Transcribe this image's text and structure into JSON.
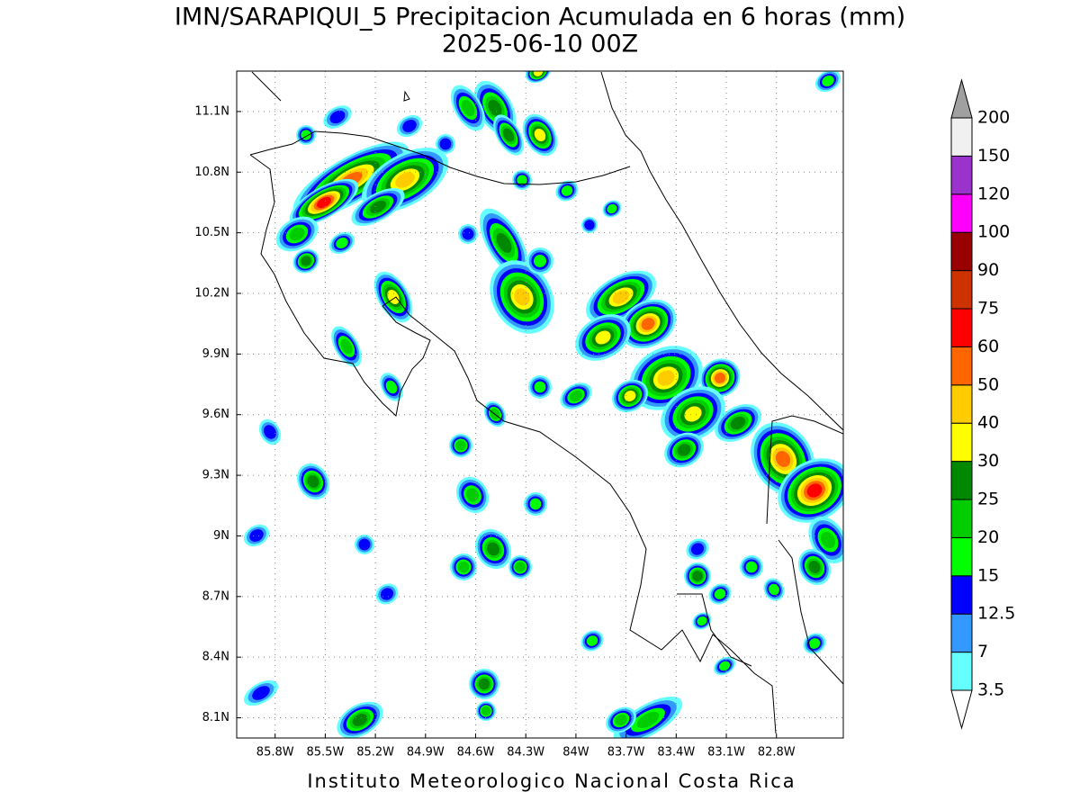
{
  "map": {
    "title": "IMN/SARAPIQUI_5 Precipitacion Acumulada en 6 horas (mm)",
    "subtitle": "2025-06-10 00Z",
    "footer": "Instituto Meteorologico Nacional Costa Rica",
    "xlim": [
      -86.03,
      -82.4
    ],
    "ylim": [
      8.0,
      11.3
    ],
    "xticks": [
      {
        "value": -85.8,
        "label": "85.8W"
      },
      {
        "value": -85.5,
        "label": "85.5W"
      },
      {
        "value": -85.2,
        "label": "85.2W"
      },
      {
        "value": -84.9,
        "label": "84.9W"
      },
      {
        "value": -84.6,
        "label": "84.6W"
      },
      {
        "value": -84.3,
        "label": "84.3W"
      },
      {
        "value": -84.0,
        "label": "84W"
      },
      {
        "value": -83.7,
        "label": "83.7W"
      },
      {
        "value": -83.4,
        "label": "83.4W"
      },
      {
        "value": -83.1,
        "label": "83.1W"
      },
      {
        "value": -82.8,
        "label": "82.8W"
      }
    ],
    "yticks": [
      {
        "value": 8.1,
        "label": "8.1N"
      },
      {
        "value": 8.4,
        "label": "8.4N"
      },
      {
        "value": 8.7,
        "label": "8.7N"
      },
      {
        "value": 9.0,
        "label": "9N"
      },
      {
        "value": 9.3,
        "label": "9.3N"
      },
      {
        "value": 9.6,
        "label": "9.6N"
      },
      {
        "value": 9.9,
        "label": "9.9N"
      },
      {
        "value": 10.2,
        "label": "10.2N"
      },
      {
        "value": 10.5,
        "label": "10.5N"
      },
      {
        "value": 10.8,
        "label": "10.8N"
      },
      {
        "value": 11.1,
        "label": "11.1N"
      }
    ],
    "grid": true,
    "colorbar": {
      "levels": [
        3.5,
        7,
        12.5,
        15,
        20,
        25,
        30,
        40,
        50,
        60,
        75,
        90,
        100,
        120,
        150,
        200
      ],
      "colors": [
        "#66ffff",
        "#3399ff",
        "#0000ff",
        "#00ff00",
        "#00cc00",
        "#008800",
        "#ffff00",
        "#ffcc00",
        "#ff6600",
        "#ff0000",
        "#cc3300",
        "#990000",
        "#ff00ff",
        "#9933cc",
        "#f0f0f0"
      ],
      "under_color": "#ffffff",
      "over_color": "#a0a0a0"
    }
  }
}
